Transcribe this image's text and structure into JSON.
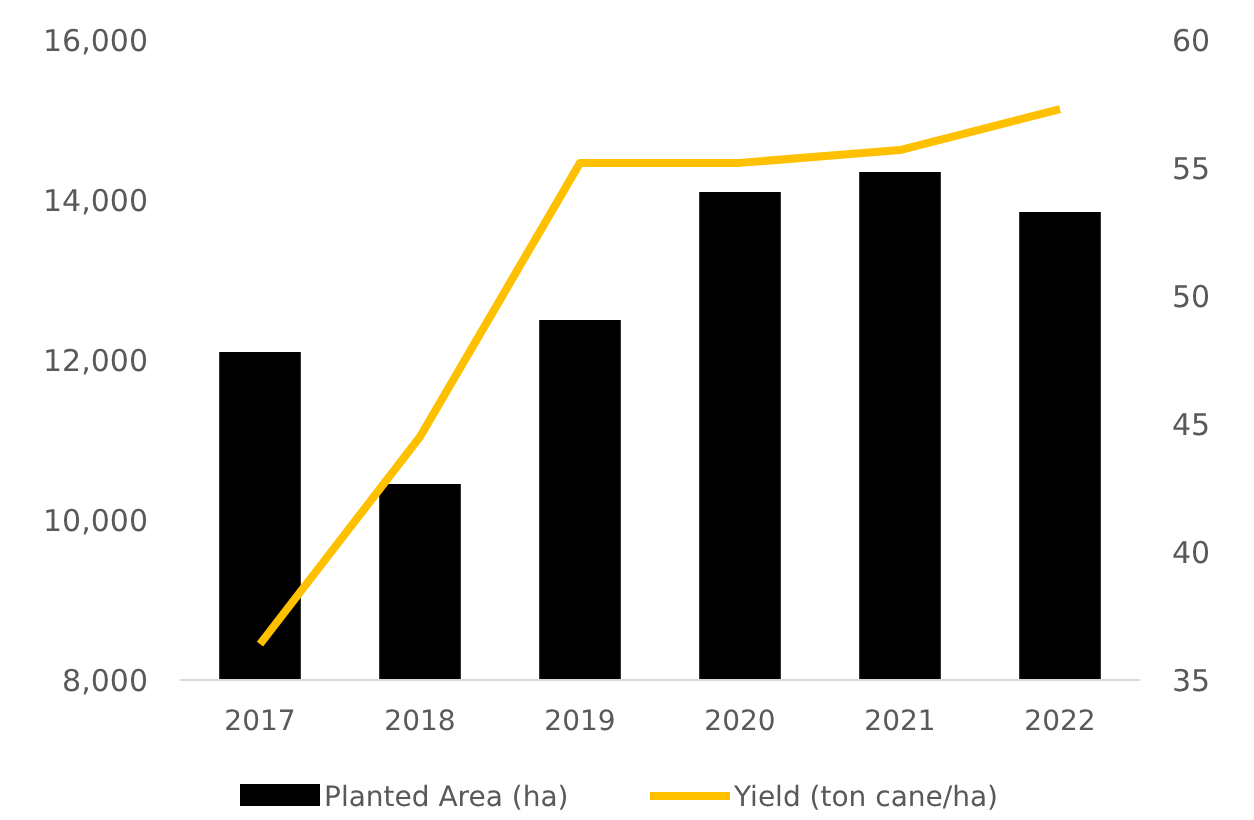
{
  "chart_data": {
    "type": "bar",
    "categories": [
      "2017",
      "2018",
      "2019",
      "2020",
      "2021",
      "2022"
    ],
    "series": [
      {
        "name": "Planted Area (ha)",
        "color": "#000000",
        "values": [
          12100,
          10450,
          12500,
          14100,
          14350,
          13850
        ]
      },
      {
        "name": "Yield (ton cane/ha)",
        "type": "line",
        "axis": "y2",
        "color": "#ffc000",
        "values": [
          36.4,
          44.5,
          55.2,
          55.2,
          55.7,
          57.3
        ]
      }
    ],
    "ylim": [
      8000,
      16000
    ],
    "yticks": [
      {
        "value": 8000,
        "label": "8,000"
      },
      {
        "value": 10000,
        "label": "10,000"
      },
      {
        "value": 12000,
        "label": "12,000"
      },
      {
        "value": 14000,
        "label": "14,000"
      },
      {
        "value": 16000,
        "label": "16,000"
      }
    ],
    "y2lim": [
      35,
      60
    ],
    "y2ticks": [
      35,
      40,
      45,
      50,
      55,
      60
    ],
    "grid": false,
    "legend": "bottom",
    "marker": "none",
    "line_style": "solid"
  }
}
